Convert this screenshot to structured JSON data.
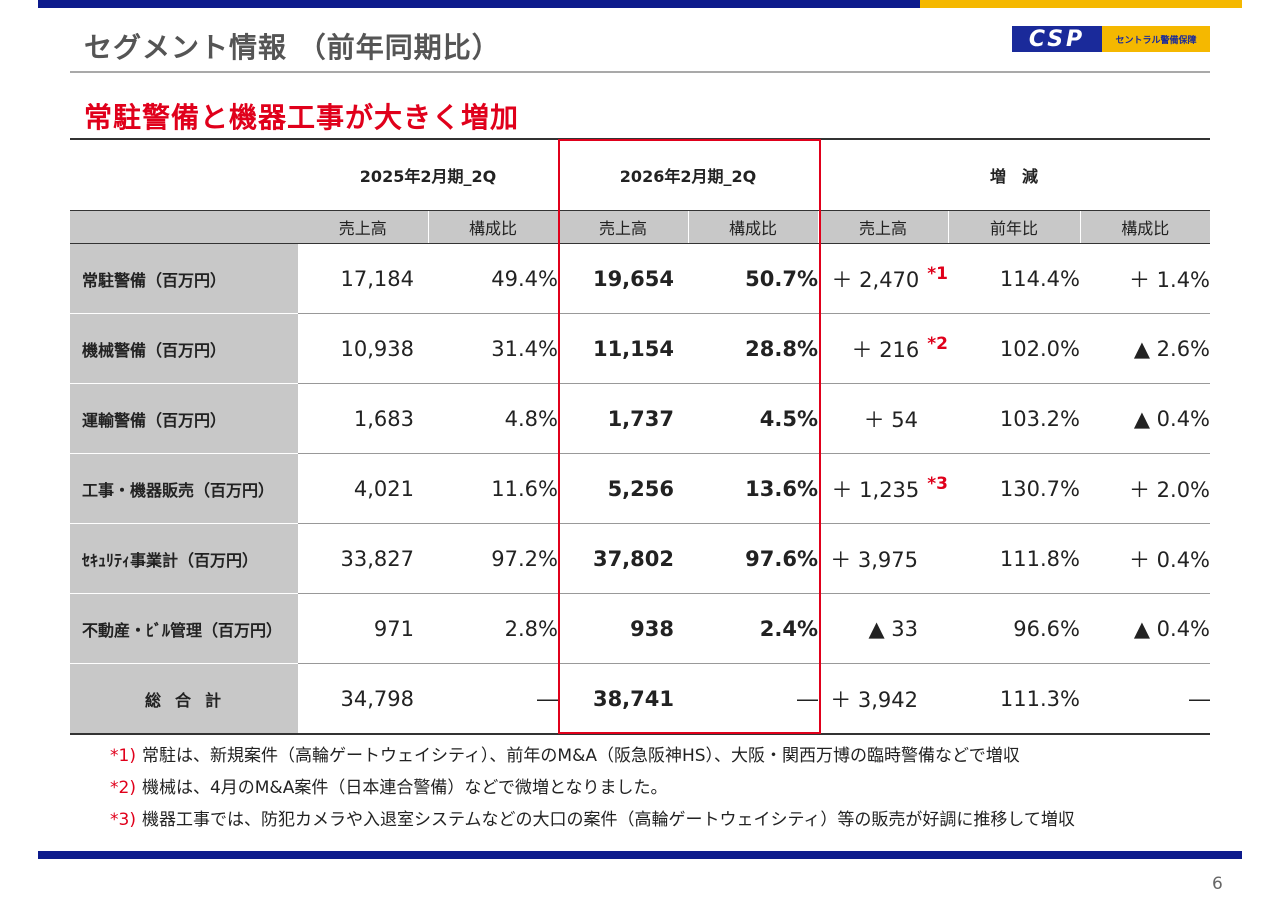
{
  "title": "セグメント情報 （前年同期比）",
  "logo": {
    "mark": "CSP",
    "text": "セントラル警備保障"
  },
  "headline": "常駐警備と機器工事が大きく増加",
  "table": {
    "period_headers": [
      "2025年2月期_2Q",
      "2026年2月期_2Q",
      "増　減"
    ],
    "sub_headers": [
      "売上高",
      "構成比",
      "売上高",
      "構成比",
      "売上高",
      "前年比",
      "構成比"
    ],
    "rows": [
      {
        "label": "常駐警備（百万円）",
        "prev_sales": "17,184",
        "prev_ratio": "49.4%",
        "cur_sales": "19,654",
        "cur_ratio": "50.7%",
        "diff_sales": "＋ 2,470",
        "note": "*1",
        "yoy": "114.4%",
        "diff_ratio": "＋ 1.4%"
      },
      {
        "label": "機械警備（百万円）",
        "prev_sales": "10,938",
        "prev_ratio": "31.4%",
        "cur_sales": "11,154",
        "cur_ratio": "28.8%",
        "diff_sales": "＋ 216",
        "note": "*2",
        "yoy": "102.0%",
        "diff_ratio": "▲ 2.6%"
      },
      {
        "label": "運輸警備（百万円）",
        "prev_sales": "1,683",
        "prev_ratio": "4.8%",
        "cur_sales": "1,737",
        "cur_ratio": "4.5%",
        "diff_sales": "＋ 54",
        "note": "",
        "yoy": "103.2%",
        "diff_ratio": "▲ 0.4%"
      },
      {
        "label": "工事・機器販売（百万円）",
        "prev_sales": "4,021",
        "prev_ratio": "11.6%",
        "cur_sales": "5,256",
        "cur_ratio": "13.6%",
        "diff_sales": "＋ 1,235",
        "note": "*3",
        "yoy": "130.7%",
        "diff_ratio": "＋ 2.0%"
      },
      {
        "label": "ｾｷｭﾘﾃｨ事業計（百万円）",
        "prev_sales": "33,827",
        "prev_ratio": "97.2%",
        "cur_sales": "37,802",
        "cur_ratio": "97.6%",
        "diff_sales": "＋ 3,975",
        "note": "",
        "yoy": "111.8%",
        "diff_ratio": "＋ 0.4%"
      },
      {
        "label": "不動産・ﾋﾞﾙ管理（百万円）",
        "prev_sales": "971",
        "prev_ratio": "2.8%",
        "cur_sales": "938",
        "cur_ratio": "2.4%",
        "diff_sales": "▲ 33",
        "note": "",
        "yoy": "96.6%",
        "diff_ratio": "▲ 0.4%"
      },
      {
        "label": "総合計",
        "prev_sales": "34,798",
        "prev_ratio": "―",
        "cur_sales": "38,741",
        "cur_ratio": "―",
        "diff_sales": "＋ 3,942",
        "note": "",
        "yoy": "111.3%",
        "diff_ratio": "―"
      }
    ]
  },
  "footnotes": [
    {
      "mark": "*1)",
      "text": "常駐は、新規案件（高輪ゲートウェイシティ）、前年のM&A（阪急阪神HS）、大阪・関西万博の臨時警備などで増収"
    },
    {
      "mark": "*2)",
      "text": "機械は、4月のM&A案件（日本連合警備）などで微増となりました。"
    },
    {
      "mark": "*3)",
      "text": "機器工事では、防犯カメラや入退室システムなどの大口の案件（高輪ゲートウェイシティ）等の販売が好調に推移して増収"
    }
  ],
  "page_number": "6",
  "colors": {
    "navy": "#0d1b8c",
    "yellow": "#f5b800",
    "red": "#e0001b",
    "label_bg": "#c8c8c8"
  }
}
